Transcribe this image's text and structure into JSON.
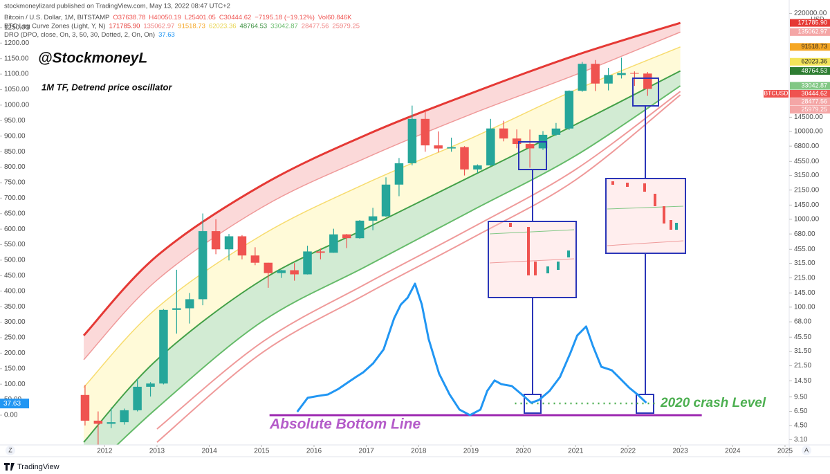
{
  "chart_data": {
    "type": "candlestick",
    "published": "stockmoneylizard published on TradingView.com, May 13, 2022 08:47 UTC+2",
    "legend": [
      {
        "name": "Bitcoin / U.S. Dollar, 1M, BITSTAMP",
        "values": [
          {
            "text": "O37638.78",
            "color": "#ef5350"
          },
          {
            "text": "H40050.19",
            "color": "#ef5350"
          },
          {
            "text": "L25401.05",
            "color": "#ef5350"
          },
          {
            "text": "C30444.62",
            "color": "#ef5350"
          },
          {
            "text": "−7195.18 (−19.12%)",
            "color": "#ef5350"
          },
          {
            "text": "Vol60.846K",
            "color": "#ef5350"
          }
        ]
      },
      {
        "name": "BTC Log Curve Zones (Light, Y, N)",
        "values": [
          {
            "text": "171785.90",
            "color": "#e53935"
          },
          {
            "text": "135062.97",
            "color": "#ef7f7f"
          },
          {
            "text": "91518.73",
            "color": "#f5a623"
          },
          {
            "text": "62023.36",
            "color": "#e8d44d"
          },
          {
            "text": "48764.53",
            "color": "#388e3c"
          },
          {
            "text": "33042.87",
            "color": "#66bb6a"
          },
          {
            "text": "28477.56",
            "color": "#ef7f7f"
          },
          {
            "text": "25979.25",
            "color": "#ef7f7f"
          }
        ]
      },
      {
        "name": "DRO (DPO, close, On, 3, 50, 30, Dotted, 2, On, On)",
        "values": [
          {
            "text": "37.63",
            "color": "#2196f3"
          }
        ]
      }
    ],
    "annotations": {
      "handle": "@StockmoneyL",
      "subtitle": "1M TF, Detrend price oscillator",
      "crash_level": "2020 crash Level",
      "bottom_line": "Absolute Bottom Line"
    },
    "currency": "USD",
    "symbol_tag": "BTCUSD",
    "corner_buttons": [
      "Z",
      "A"
    ],
    "brand": "TradingView",
    "log_scale": true,
    "xlim": [
      2010,
      2025.08
    ],
    "xticks": [
      2012,
      2013,
      2014,
      2015,
      2016,
      2017,
      2018,
      2019,
      2020,
      2021,
      2022,
      2023,
      2024,
      2025
    ],
    "ylim": [
      2.7,
      313000
    ],
    "yticks": [
      {
        "value": 220000,
        "label": "220000.00"
      },
      {
        "value": 14500,
        "label": "14500.00"
      },
      {
        "value": 10000,
        "label": "10000.00"
      },
      {
        "value": 6800,
        "label": "6800.00"
      },
      {
        "value": 4550,
        "label": "4550.00"
      },
      {
        "value": 3150,
        "label": "3150.00"
      },
      {
        "value": 2150,
        "label": "2150.00"
      },
      {
        "value": 1450,
        "label": "1450.00"
      },
      {
        "value": 1000,
        "label": "1000.00"
      },
      {
        "value": 680,
        "label": "680.00"
      },
      {
        "value": 455,
        "label": "455.00"
      },
      {
        "value": 315,
        "label": "315.00"
      },
      {
        "value": 215,
        "label": "215.00"
      },
      {
        "value": 145,
        "label": "145.00"
      },
      {
        "value": 100,
        "label": "100.00"
      },
      {
        "value": 68,
        "label": "68.00"
      },
      {
        "value": 45.5,
        "label": "45.50"
      },
      {
        "value": 31.5,
        "label": "31.50"
      },
      {
        "value": 21.5,
        "label": "21.50"
      },
      {
        "value": 14.5,
        "label": "14.50"
      },
      {
        "value": 9.5,
        "label": "9.50"
      },
      {
        "value": 6.5,
        "label": "6.50"
      },
      {
        "value": 4.5,
        "label": "4.50"
      },
      {
        "value": 3.1,
        "label": "3.10"
      }
    ],
    "y2lim": [
      -96,
      1339
    ],
    "y2ticks": [
      {
        "value": 0,
        "label": "0.00"
      },
      {
        "value": 50,
        "label": "50.00"
      },
      {
        "value": 100,
        "label": "100.00"
      },
      {
        "value": 150,
        "label": "150.00"
      },
      {
        "value": 200,
        "label": "200.00"
      },
      {
        "value": 250,
        "label": "250.00"
      },
      {
        "value": 300,
        "label": "300.00"
      },
      {
        "value": 350,
        "label": "350.00"
      },
      {
        "value": 400,
        "label": "400.00"
      },
      {
        "value": 450,
        "label": "450.00"
      },
      {
        "value": 500,
        "label": "500.00"
      },
      {
        "value": 550,
        "label": "550.00"
      },
      {
        "value": 600,
        "label": "600.00"
      },
      {
        "value": 650,
        "label": "650.00"
      },
      {
        "value": 700,
        "label": "700.00"
      },
      {
        "value": 750,
        "label": "750.00"
      },
      {
        "value": 800,
        "label": "800.00"
      },
      {
        "value": 850,
        "label": "850.00"
      },
      {
        "value": 900,
        "label": "900.00"
      },
      {
        "value": 950,
        "label": "950.00"
      },
      {
        "value": 1000,
        "label": "1000.00"
      },
      {
        "value": 1050,
        "label": "1050.00"
      },
      {
        "value": 1100,
        "label": "1100.00"
      },
      {
        "value": 1150,
        "label": "1150.00"
      },
      {
        "value": 1200,
        "label": "1200.00"
      },
      {
        "value": 1250,
        "label": "1250.00"
      }
    ],
    "price_tags": [
      {
        "value": 171785.9,
        "label": "171785.90",
        "color": "#e53935"
      },
      {
        "value": 135062.97,
        "label": "135062.97",
        "color": "#f4a6a6"
      },
      {
        "value": 91518.73,
        "label": "91518.73",
        "color": "#f5a623"
      },
      {
        "value": 62023.36,
        "label": "62023.36",
        "color": "#f3e45a"
      },
      {
        "value": 48764.53,
        "label": "48764.53",
        "color": "#2e7d32"
      },
      {
        "value": 33042.87,
        "label": "33042.87",
        "color": "#81c784"
      },
      {
        "value": 30444.62,
        "label": "30444.62",
        "color": "#ef5350"
      },
      {
        "value": 28477.56,
        "label": "28477.56",
        "color": "#f4a6a6"
      },
      {
        "value": 25979.25,
        "label": "25979.25",
        "color": "#f4a6a6"
      }
    ],
    "candles": {
      "up_color": "#26a69a",
      "down_color": "#ef5350",
      "x": [
        2011.625,
        2011.875,
        2012.125,
        2012.375,
        2012.625,
        2012.875,
        2013.125,
        2013.375,
        2013.625,
        2013.875,
        2014.125,
        2014.375,
        2014.625,
        2014.875,
        2015.125,
        2015.375,
        2015.625,
        2015.875,
        2016.125,
        2016.375,
        2016.625,
        2016.875,
        2017.125,
        2017.375,
        2017.625,
        2017.875,
        2018.125,
        2018.375,
        2018.625,
        2018.875,
        2019.125,
        2019.375,
        2019.625,
        2019.875,
        2020.125,
        2020.375,
        2020.625,
        2020.875,
        2021.125,
        2021.375,
        2021.625,
        2021.875,
        2022.125,
        2022.375
      ],
      "open": [
        10,
        5.1,
        4.7,
        4.9,
        6.7,
        12.4,
        13.5,
        93,
        97,
        123,
        732,
        455,
        640,
        387,
        320,
        244,
        263,
        236,
        430,
        416,
        673,
        609,
        964,
        1080,
        2480,
        4340,
        13880,
        6930,
        6390,
        6620,
        3690,
        4100,
        10800,
        8300,
        7190,
        6410,
        9140,
        10780,
        28990,
        58780,
        35040,
        43820,
        46200,
        45540
      ],
      "high": [
        13,
        6.5,
        7.2,
        7.0,
        15.4,
        14.0,
        95,
        266,
        145,
        1163,
        1000,
        680,
        660,
        480,
        320,
        265,
        317,
        500,
        465,
        780,
        680,
        980,
        1350,
        3000,
        4980,
        19660,
        17180,
        9990,
        8490,
        6800,
        4210,
        13880,
        13200,
        10540,
        10500,
        10080,
        12470,
        29300,
        61780,
        64900,
        52900,
        69000,
        48200,
        47400
      ],
      "low": [
        4.5,
        2.0,
        4.2,
        4.6,
        6.5,
        9.6,
        13.2,
        50,
        65,
        105,
        400,
        340,
        350,
        300,
        166,
        215,
        200,
        235,
        350,
        415,
        470,
        600,
        750,
        1060,
        1830,
        4100,
        5870,
        5760,
        5870,
        3150,
        3350,
        4030,
        7700,
        6430,
        3860,
        6150,
        8930,
        10370,
        28240,
        28800,
        29300,
        40000,
        32950,
        25400
      ],
      "close": [
        5.1,
        4.7,
        4.9,
        6.7,
        12.4,
        13.5,
        93,
        97,
        123,
        732,
        455,
        640,
        387,
        320,
        244,
        263,
        236,
        430,
        416,
        673,
        609,
        964,
        1080,
        2480,
        4340,
        13880,
        6930,
        6390,
        6620,
        3690,
        4100,
        10800,
        8300,
        7190,
        6410,
        9140,
        10780,
        28990,
        58780,
        35040,
        43820,
        46200,
        45540,
        30444.62
      ]
    },
    "zone_x": [
      2011.6,
      2013,
      2015,
      2017,
      2019,
      2021,
      2023
    ],
    "zones": [
      {
        "color": "#e53935",
        "fill": "rgba(239,83,80,0.22)",
        "width": 3,
        "values": [
          47.5,
          383,
          2432,
          9140,
          27100,
          73500,
          172000
        ]
      },
      {
        "color": "#ef9a9a",
        "width": 1.5,
        "values": [
          25.2,
          203,
          1360,
          5020,
          15700,
          44200,
          135000
        ]
      },
      {
        "color": "#f7dc6f",
        "fill": "rgba(255,235,100,0.25)",
        "width": 1.5,
        "values": [
          12.2,
          98,
          659,
          2570,
          8340,
          29700,
          91500
        ]
      },
      {
        "color": "#43a047",
        "fill": "rgba(76,175,80,0.25)",
        "width": 2,
        "values": [
          2.9,
          25.2,
          203,
          791,
          3080,
          12000,
          48800
        ]
      },
      {
        "color": "#66bb6a",
        "width": 2,
        "values": [
          1.16,
          7.1,
          68,
          292,
          1240,
          5300,
          33000
        ]
      },
      {
        "color": "#ef9a9a",
        "width": 2,
        "values": [
          null,
          4.1,
          39.6,
          185,
          791,
          3690,
          28500
        ]
      },
      {
        "color": "#ef9a9a",
        "width": 2,
        "values": [
          null,
          2.9,
          30,
          141,
          603,
          2810,
          26000
        ]
      }
    ],
    "oscillator": {
      "axis": "y2",
      "color": "#2196f3",
      "x": [
        2015.68,
        2015.88,
        2016.08,
        2016.27,
        2016.47,
        2016.6,
        2016.8,
        2016.94,
        2017.13,
        2017.33,
        2017.53,
        2017.66,
        2017.79,
        2017.93,
        2018.06,
        2018.19,
        2018.39,
        2018.59,
        2018.78,
        2018.98,
        2019.18,
        2019.31,
        2019.45,
        2019.58,
        2019.78,
        2019.97,
        2020.15,
        2020.3,
        2020.5,
        2020.7,
        2020.9,
        2021.03,
        2021.2,
        2021.33,
        2021.49,
        2021.69,
        2021.82,
        2022.02,
        2022.18,
        2022.35
      ],
      "values": [
        11,
        56,
        62,
        67,
        85,
        100,
        123,
        138,
        167,
        212,
        312,
        357,
        379,
        424,
        357,
        246,
        134,
        67,
        18,
        0,
        18,
        78,
        112,
        100,
        94,
        67,
        40,
        49,
        78,
        123,
        201,
        257,
        286,
        223,
        156,
        145,
        123,
        89,
        67,
        40
      ]
    },
    "oscillator_last": {
      "value": 37.63,
      "label": "37.63"
    },
    "bottom_line": {
      "axis": "y2",
      "color": "#9c27b0",
      "x": [
        2015.15,
        2023.41
      ],
      "value": 0
    },
    "crash_line": {
      "axis": "y2",
      "color": "#4caf50",
      "x": [
        2019.84,
        2022.55
      ],
      "value": 38
    }
  }
}
